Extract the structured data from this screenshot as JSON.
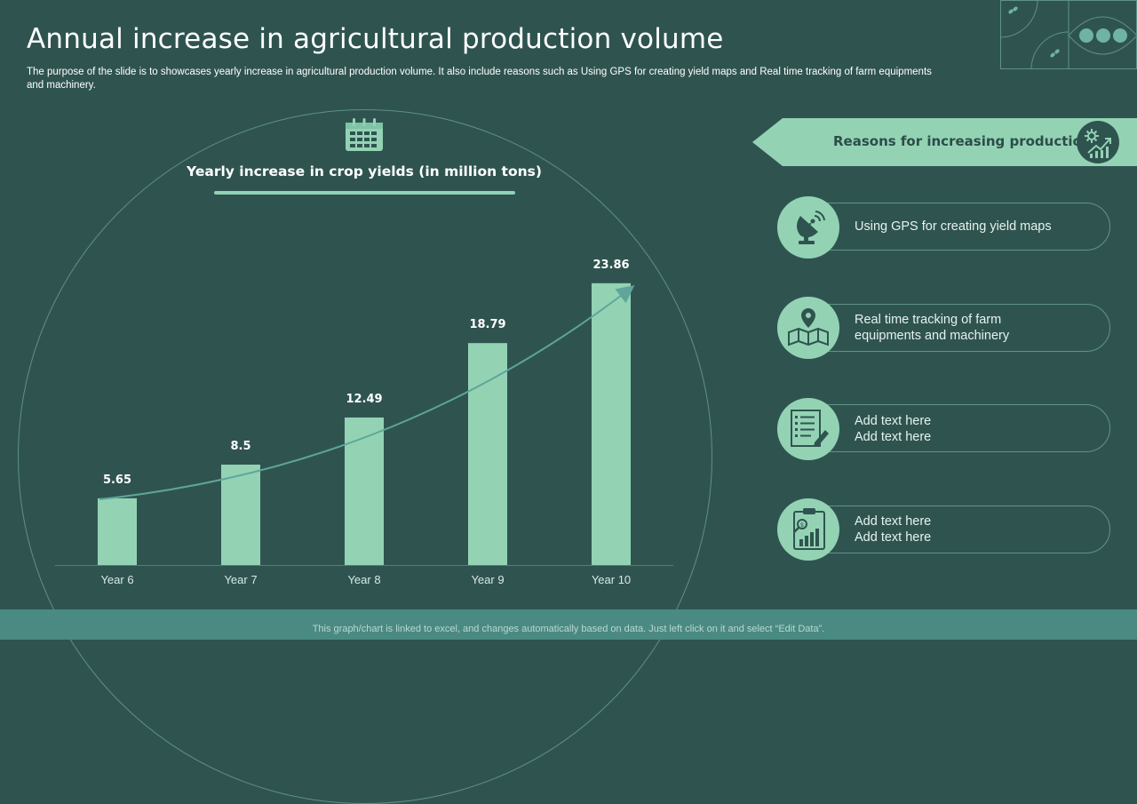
{
  "header": {
    "title": "Annual increase in agricultural production volume",
    "description": "The purpose of the slide is to showcases yearly increase in agricultural production volume. It also include reasons such as Using GPS for creating yield maps and Real time tracking of farm equipments and machinery."
  },
  "chart_data": {
    "type": "bar",
    "title": "Yearly increase in crop yields (in million tons)",
    "categories": [
      "Year 6",
      "Year 7",
      "Year 8",
      "Year 9",
      "Year 10"
    ],
    "values": [
      5.65,
      8.5,
      12.49,
      18.79,
      23.86
    ],
    "value_labels": [
      "5.65",
      "8.5",
      "12.49",
      "18.79",
      "23.86"
    ],
    "ylim": [
      0,
      25.5
    ],
    "grid": false,
    "legend": "none",
    "trend_arrow": true,
    "bar_color": "#93d3b4"
  },
  "reasons": {
    "title": "Reasons for increasing production",
    "items": [
      {
        "icon": "satellite-dish-icon",
        "text": "Using GPS for creating yield maps"
      },
      {
        "icon": "map-location-icon",
        "text": "Real time tracking of farm equipments and machinery"
      },
      {
        "icon": "checklist-pencil-icon",
        "text": "Add text here\nAdd text here"
      },
      {
        "icon": "clipboard-chart-icon",
        "text": "Add text here\nAdd text here"
      }
    ]
  },
  "footer": {
    "note": "This graph/chart is linked to excel, and changes automatically based on data. Just left click on it and select “Edit Data”."
  },
  "colors": {
    "background": "#2f5450",
    "accent": "#93d3b4",
    "footer": "#4a8a82"
  }
}
